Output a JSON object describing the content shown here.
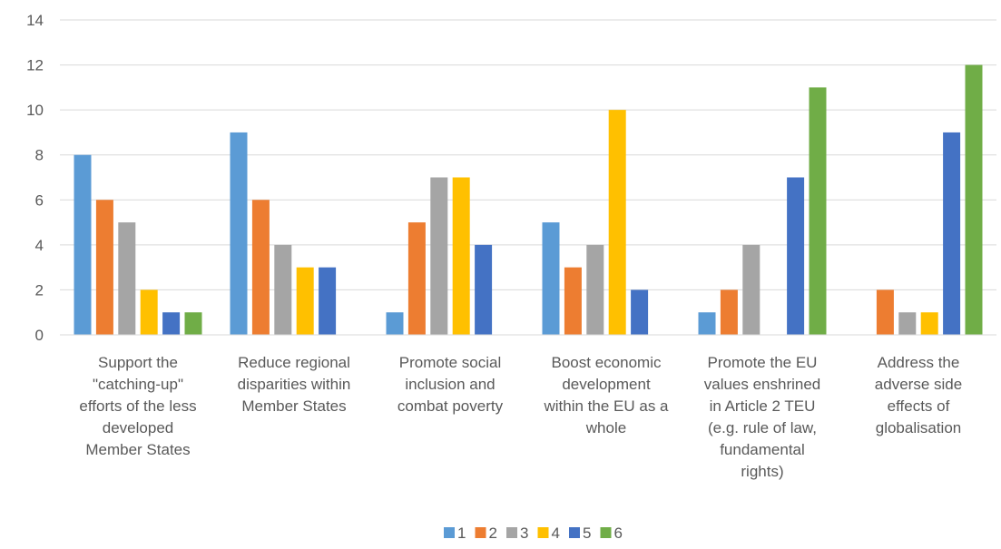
{
  "chart_data": {
    "type": "bar",
    "title": "",
    "xlabel": "",
    "ylabel": "",
    "ylim": [
      0,
      14
    ],
    "yticks": [
      0,
      2,
      4,
      6,
      8,
      10,
      12,
      14
    ],
    "grid": true,
    "legend_position": "bottom",
    "categories": [
      [
        "Support the",
        "\"catching-up\"",
        "efforts of the less",
        "developed",
        "Member States"
      ],
      [
        "Reduce regional",
        "disparities within",
        "Member States"
      ],
      [
        "Promote social",
        "inclusion and",
        "combat poverty"
      ],
      [
        "Boost economic",
        "development",
        "within the EU as a",
        "whole"
      ],
      [
        "Promote the EU",
        "values enshrined",
        "in Article 2 TEU",
        "(e.g. rule of law,",
        "fundamental",
        "rights)"
      ],
      [
        "Address the",
        "adverse side",
        "effects of",
        "globalisation"
      ]
    ],
    "series": [
      {
        "name": "1",
        "color": "#5b9bd5",
        "values": [
          8,
          9,
          1,
          5,
          1,
          0
        ]
      },
      {
        "name": "2",
        "color": "#ed7d31",
        "values": [
          6,
          6,
          5,
          3,
          2,
          2
        ]
      },
      {
        "name": "3",
        "color": "#a5a5a5",
        "values": [
          5,
          4,
          7,
          4,
          4,
          1
        ]
      },
      {
        "name": "4",
        "color": "#ffc000",
        "values": [
          2,
          3,
          7,
          10,
          0,
          1
        ]
      },
      {
        "name": "5",
        "color": "#4472c4",
        "values": [
          1,
          3,
          4,
          2,
          7,
          9
        ]
      },
      {
        "name": "6",
        "color": "#70ad47",
        "values": [
          1,
          0,
          0,
          0,
          11,
          12
        ]
      }
    ]
  }
}
